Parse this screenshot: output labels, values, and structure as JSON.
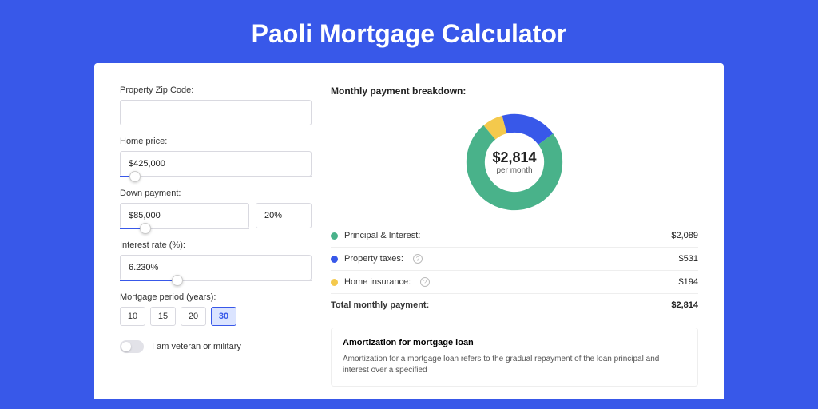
{
  "page_title": "Paoli Mortgage Calculator",
  "colors": {
    "brand": "#3858e9",
    "green": "#49b28a",
    "blue": "#3858e9",
    "yellow": "#f4c94c",
    "border": "#d9d9e0",
    "bg": "#3858e9"
  },
  "form": {
    "zip": {
      "label": "Property Zip Code:",
      "value": ""
    },
    "price": {
      "label": "Home price:",
      "value": "$425,000",
      "slider_pct": 8
    },
    "down": {
      "label": "Down payment:",
      "value": "$85,000",
      "pct_value": "20%",
      "slider_pct": 20
    },
    "rate": {
      "label": "Interest rate (%):",
      "value": "6.230%",
      "slider_pct": 30
    },
    "period": {
      "label": "Mortgage period (years):",
      "options": [
        "10",
        "15",
        "20",
        "30"
      ],
      "selected": "30"
    },
    "veteran": {
      "label": "I am veteran or military",
      "on": false
    }
  },
  "breakdown": {
    "title": "Monthly payment breakdown:",
    "center_amount": "$2,814",
    "center_sub": "per month",
    "donut": {
      "segments": [
        {
          "name": "principal_interest",
          "pct": 74,
          "color": "#49b28a"
        },
        {
          "name": "property_taxes",
          "pct": 19,
          "color": "#3858e9"
        },
        {
          "name": "home_insurance",
          "pct": 7,
          "color": "#f4c94c"
        }
      ],
      "stroke_width": 18
    },
    "rows": [
      {
        "dot": "#49b28a",
        "label": "Principal & Interest:",
        "info": false,
        "value": "$2,089"
      },
      {
        "dot": "#3858e9",
        "label": "Property taxes:",
        "info": true,
        "value": "$531"
      },
      {
        "dot": "#f4c94c",
        "label": "Home insurance:",
        "info": true,
        "value": "$194"
      }
    ],
    "total": {
      "label": "Total monthly payment:",
      "value": "$2,814"
    }
  },
  "amortization": {
    "title": "Amortization for mortgage loan",
    "text": "Amortization for a mortgage loan refers to the gradual repayment of the loan principal and interest over a specified"
  }
}
